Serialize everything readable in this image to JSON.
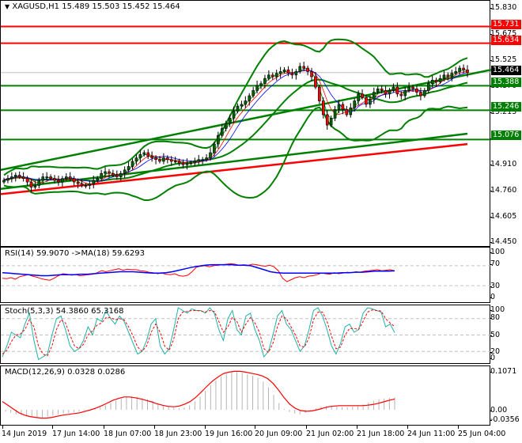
{
  "chart_data": [
    {
      "type": "candlestick",
      "title": "XAGUSD,H1  15.489 15.503 15.452 15.464",
      "symbol": "XAGUSD",
      "timeframe": "H1",
      "ohlc_last": {
        "open": 15.489,
        "high": 15.503,
        "low": 15.452,
        "close": 15.464
      },
      "ylim": [
        14.45,
        15.88
      ],
      "y_ticks": [
        15.83,
        15.675,
        15.525,
        15.37,
        15.215,
        15.065,
        14.91,
        14.76,
        14.605,
        14.45
      ],
      "x_tick_labels": [
        "14 Jun 2019",
        "17 Jun 14:00",
        "18 Jun 07:00",
        "18 Jun 23:00",
        "19 Jun 16:00",
        "20 Jun 09:00",
        "21 Jun 02:00",
        "21 Jun 18:00",
        "24 Jun 11:00",
        "25 Jun 04:00"
      ],
      "horizontal_levels": [
        {
          "value": 15.731,
          "color": "#ff0000",
          "label": "15.731"
        },
        {
          "value": 15.634,
          "color": "#ff0000",
          "label": "15.634"
        },
        {
          "value": 15.388,
          "color": "#008000",
          "label": "15.388"
        },
        {
          "value": 15.246,
          "color": "#008000",
          "label": "15.246"
        },
        {
          "value": 15.076,
          "color": "#008000",
          "label": "15.076"
        }
      ],
      "current_price": {
        "value": 15.464,
        "label": "15.464"
      },
      "close_series": [
        14.84,
        14.85,
        14.86,
        14.87,
        14.86,
        14.85,
        14.83,
        14.8,
        14.81,
        14.84,
        14.86,
        14.86,
        14.85,
        14.84,
        14.83,
        14.85,
        14.86,
        14.85,
        14.83,
        14.82,
        14.81,
        14.81,
        14.82,
        14.84,
        14.85,
        14.88,
        14.89,
        14.88,
        14.87,
        14.86,
        14.88,
        14.9,
        14.92,
        14.95,
        14.97,
        14.99,
        15.0,
        14.98,
        14.97,
        14.96,
        14.95,
        14.97,
        14.96,
        14.95,
        14.95,
        14.94,
        14.93,
        14.94,
        14.94,
        14.95,
        14.96,
        14.96,
        14.97,
        15.0,
        15.05,
        15.1,
        15.14,
        15.17,
        15.2,
        15.24,
        15.27,
        15.28,
        15.3,
        15.33,
        15.36,
        15.39,
        15.4,
        15.43,
        15.45,
        15.44,
        15.46,
        15.47,
        15.48,
        15.46,
        15.45,
        15.47,
        15.5,
        15.49,
        15.47,
        15.44,
        15.38,
        15.3,
        15.22,
        15.16,
        15.2,
        15.25,
        15.28,
        15.25,
        15.22,
        15.26,
        15.3,
        15.34,
        15.32,
        15.28,
        15.31,
        15.35,
        15.37,
        15.36,
        15.34,
        15.36,
        15.38,
        15.34,
        15.33,
        15.36,
        15.38,
        15.37,
        15.35,
        15.33,
        15.36,
        15.4,
        15.42,
        15.41,
        15.43,
        15.45,
        15.44,
        15.46,
        15.47,
        15.49,
        15.48,
        15.464
      ],
      "moving_averages": [
        {
          "name": "MA long",
          "color": "#ff0000",
          "start": 14.76,
          "end": 15.05
        },
        {
          "name": "MA mid",
          "color": "#008000",
          "start": 14.79,
          "end": 15.11
        },
        {
          "name": "Trendline",
          "color": "#008000",
          "start": 14.9,
          "end": 15.48
        }
      ]
    },
    {
      "type": "line",
      "title": "RSI(14) 59.9070  ->MA(18) 59.6293",
      "ylim": [
        0,
        100
      ],
      "y_ticks": [
        100,
        70,
        30,
        0
      ],
      "levels": [
        70,
        30
      ],
      "series": [
        {
          "name": "RSI(14)",
          "color": "#ff0000",
          "last": 59.907,
          "values": [
            45,
            44,
            46,
            43,
            48,
            50,
            52,
            49,
            47,
            44,
            42,
            41,
            45,
            50,
            54,
            53,
            51,
            52,
            50,
            51,
            52,
            53,
            56,
            60,
            58,
            60,
            62,
            64,
            61,
            63,
            62,
            62,
            60,
            59,
            57,
            56,
            54,
            55,
            53,
            52,
            54,
            50,
            49,
            51,
            58,
            67,
            69,
            70,
            68,
            70,
            71,
            72,
            73,
            74,
            73,
            71,
            72,
            71,
            73,
            72,
            70,
            69,
            71,
            68,
            60,
            45,
            38,
            42,
            46,
            48,
            46,
            49,
            50,
            52,
            55,
            54,
            53,
            56,
            54,
            55,
            57,
            56,
            58,
            57,
            59,
            60,
            61,
            62,
            60,
            61,
            62,
            59.907
          ]
        },
        {
          "name": "MA(18)",
          "color": "#0000ff",
          "last": 59.6293,
          "values": [
            56,
            55,
            54,
            53,
            52,
            51,
            50,
            50,
            51,
            52,
            52,
            52,
            53,
            53,
            54,
            55,
            56,
            57,
            58,
            58,
            58,
            57,
            56,
            55,
            55,
            56,
            58,
            61,
            64,
            67,
            69,
            71,
            72,
            72,
            72,
            72,
            71,
            71,
            70,
            66,
            62,
            58,
            56,
            55,
            55,
            55,
            55,
            55,
            55,
            55,
            55,
            55,
            56,
            56,
            57,
            57,
            58,
            59,
            59,
            59,
            59.629
          ]
        }
      ]
    },
    {
      "type": "line",
      "title": "Stoch(5,3,3) 54.3860 65.3168",
      "ylim": [
        0,
        100
      ],
      "y_ticks": [
        100,
        80,
        50,
        20,
        0
      ],
      "levels": [
        80,
        50,
        20
      ],
      "series": [
        {
          "name": "%K",
          "color": "#20b2aa",
          "last": 54.386,
          "values": [
            10,
            30,
            55,
            50,
            45,
            70,
            90,
            40,
            5,
            10,
            15,
            50,
            80,
            85,
            60,
            30,
            20,
            25,
            40,
            65,
            50,
            80,
            75,
            95,
            80,
            70,
            85,
            75,
            55,
            35,
            15,
            20,
            40,
            70,
            80,
            30,
            15,
            25,
            60,
            100,
            95,
            90,
            98,
            95,
            95,
            90,
            100,
            90,
            60,
            40,
            80,
            95,
            60,
            50,
            85,
            90,
            60,
            40,
            10,
            20,
            50,
            85,
            95,
            70,
            60,
            40,
            20,
            30,
            60,
            95,
            100,
            85,
            60,
            30,
            15,
            35,
            65,
            70,
            55,
            60,
            90,
            100,
            98,
            95,
            92,
            65,
            70,
            54.386
          ]
        },
        {
          "name": "%D",
          "color": "#ff0000",
          "last": 65.3168,
          "values": [
            15,
            22,
            38,
            50,
            52,
            60,
            78,
            65,
            30,
            15,
            12,
            30,
            60,
            78,
            72,
            50,
            30,
            25,
            33,
            50,
            58,
            68,
            72,
            82,
            82,
            78,
            80,
            78,
            65,
            48,
            28,
            20,
            30,
            55,
            70,
            55,
            30,
            22,
            42,
            80,
            92,
            93,
            95,
            95,
            94,
            92,
            95,
            93,
            75,
            55,
            65,
            82,
            75,
            55,
            70,
            82,
            72,
            55,
            25,
            18,
            35,
            65,
            85,
            80,
            65,
            50,
            30,
            28,
            45,
            78,
            92,
            92,
            75,
            48,
            25,
            28,
            50,
            62,
            62,
            60,
            75,
            92,
            96,
            95,
            94,
            80,
            72,
            65.317
          ]
        }
      ]
    },
    {
      "type": "bar",
      "title": "MACD(12,26,9) 0.0328 0.0286",
      "ylim": [
        -0.0356,
        0.1071
      ],
      "y_ticks": [
        0.1071,
        0.0,
        -0.0356
      ],
      "series": [
        {
          "name": "MACD histogram",
          "color": "#b4b4b4",
          "last": 0.0328,
          "values": [
            -0.005,
            -0.008,
            -0.012,
            -0.015,
            -0.018,
            -0.02,
            -0.022,
            -0.02,
            -0.018,
            -0.015,
            -0.012,
            -0.01,
            -0.008,
            -0.006,
            -0.004,
            -0.002,
            0.0,
            0.003,
            0.007,
            0.012,
            0.018,
            0.024,
            0.03,
            0.034,
            0.036,
            0.035,
            0.032,
            0.028,
            0.024,
            0.018,
            0.012,
            0.008,
            0.005,
            0.004,
            0.006,
            0.012,
            0.022,
            0.035,
            0.05,
            0.065,
            0.078,
            0.088,
            0.096,
            0.1,
            0.1,
            0.098,
            0.094,
            0.09,
            0.085,
            0.075,
            0.06,
            0.04,
            0.018,
            0.002,
            -0.006,
            -0.01,
            -0.012,
            -0.008,
            -0.002,
            0.004,
            0.008,
            0.01,
            0.009,
            0.008,
            0.007,
            0.007,
            0.008,
            0.01,
            0.014,
            0.019,
            0.024,
            0.028,
            0.03,
            0.032,
            0.0328
          ]
        },
        {
          "name": "Signal",
          "color": "#ff0000",
          "last": 0.0286,
          "values": [
            0.022,
            0.012,
            0.002,
            -0.008,
            -0.014,
            -0.018,
            -0.02,
            -0.022,
            -0.022,
            -0.02,
            -0.017,
            -0.014,
            -0.012,
            -0.01,
            -0.008,
            -0.004,
            0.0,
            0.005,
            0.011,
            0.018,
            0.025,
            0.03,
            0.034,
            0.034,
            0.032,
            0.029,
            0.025,
            0.021,
            0.016,
            0.012,
            0.009,
            0.008,
            0.01,
            0.015,
            0.022,
            0.033,
            0.047,
            0.062,
            0.076,
            0.087,
            0.096,
            0.1,
            0.102,
            0.102,
            0.1,
            0.097,
            0.094,
            0.09,
            0.083,
            0.07,
            0.052,
            0.032,
            0.015,
            0.004,
            -0.002,
            -0.004,
            -0.003,
            0.0,
            0.004,
            0.008,
            0.01,
            0.011,
            0.011,
            0.011,
            0.011,
            0.011,
            0.012,
            0.014,
            0.017,
            0.021,
            0.025,
            0.0286
          ]
        }
      ]
    }
  ],
  "main_panel": {
    "title": "XAGUSD,H1  15.489 15.503 15.452 15.464",
    "y_ticks": [
      "15.830",
      "15.675",
      "15.525",
      "15.370",
      "15.215",
      "15.065",
      "14.910",
      "14.760",
      "14.605",
      "14.450"
    ],
    "tags": [
      {
        "label": "15.731",
        "color": "#ff0000"
      },
      {
        "label": "15.634",
        "color": "#ff0000"
      },
      {
        "label": "15.464",
        "color": "#000000"
      },
      {
        "label": "15.388",
        "color": "#008000"
      },
      {
        "label": "15.246",
        "color": "#008000"
      },
      {
        "label": "15.076",
        "color": "#008000"
      }
    ]
  },
  "rsi_panel": {
    "title": "RSI(14) 59.9070  ->MA(18) 59.6293",
    "y_ticks": [
      "100",
      "70",
      "30",
      "0"
    ]
  },
  "stoch_panel": {
    "title": "Stoch(5,3,3) 54.3860 65.3168",
    "y_ticks": [
      "100",
      "80",
      "50",
      "20",
      "0"
    ]
  },
  "macd_panel": {
    "title": "MACD(12,26,9) 0.0328 0.0286",
    "y_ticks": [
      "0.1071",
      "0.00",
      "-0.0356"
    ]
  },
  "x_axis": {
    "labels": [
      "14 Jun 2019",
      "17 Jun 14:00",
      "18 Jun 07:00",
      "18 Jun 23:00",
      "19 Jun 16:00",
      "20 Jun 09:00",
      "21 Jun 02:00",
      "21 Jun 18:00",
      "24 Jun 11:00",
      "25 Jun 04:00"
    ]
  }
}
